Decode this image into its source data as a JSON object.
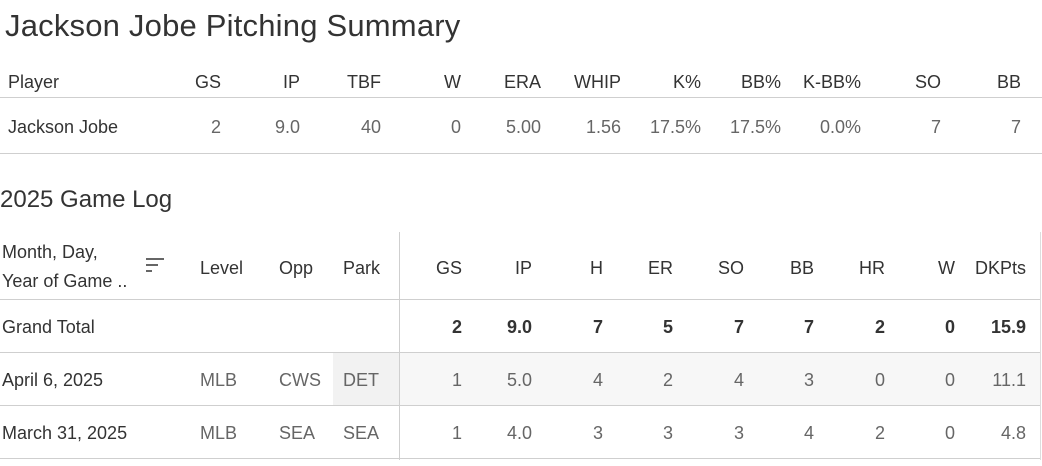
{
  "summary": {
    "title": "Jackson Jobe Pitching Summary",
    "headers": {
      "player": "Player",
      "gs": "GS",
      "ip": "IP",
      "tbf": "TBF",
      "w": "W",
      "era": "ERA",
      "whip": "WHIP",
      "kpct": "K%",
      "bbpct": "BB%",
      "kbb": "K-BB%",
      "so": "SO",
      "bb": "BB"
    },
    "row": {
      "player": "Jackson Jobe",
      "gs": "2",
      "ip": "9.0",
      "tbf": "40",
      "w": "0",
      "era": "5.00",
      "whip": "1.56",
      "kpct": "17.5%",
      "bbpct": "17.5%",
      "kbb": "0.0%",
      "so": "7",
      "bb": "7"
    }
  },
  "game_log": {
    "title": "2025 Game Log",
    "headers": {
      "date_line1": "Month, Day,",
      "date_line2": "Year of Game ..",
      "level": "Level",
      "opp": "Opp",
      "park": "Park",
      "gs": "GS",
      "ip": "IP",
      "h": "H",
      "er": "ER",
      "so": "SO",
      "bb": "BB",
      "hr": "HR",
      "w": "W",
      "dkpts": "DKPts"
    },
    "total": {
      "label": "Grand Total",
      "gs": "2",
      "ip": "9.0",
      "h": "7",
      "er": "5",
      "so": "7",
      "bb": "7",
      "hr": "2",
      "w": "0",
      "dkpts": "15.9"
    },
    "rows": [
      {
        "date": "April 6, 2025",
        "level": "MLB",
        "opp": "CWS",
        "park": "DET",
        "gs": "1",
        "ip": "5.0",
        "h": "4",
        "er": "2",
        "so": "4",
        "bb": "3",
        "hr": "0",
        "w": "0",
        "dkpts": "11.1"
      },
      {
        "date": "March 31, 2025",
        "level": "MLB",
        "opp": "SEA",
        "park": "SEA",
        "gs": "1",
        "ip": "4.0",
        "h": "3",
        "er": "3",
        "so": "3",
        "bb": "4",
        "hr": "2",
        "w": "0",
        "dkpts": "4.8"
      }
    ]
  }
}
